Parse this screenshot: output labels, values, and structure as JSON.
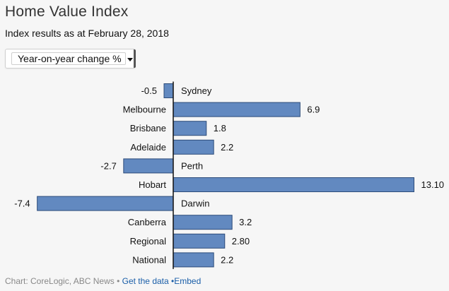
{
  "header": {
    "title": "Home Value Index",
    "subtitle": "Index results as at February 28, 2018"
  },
  "selector": {
    "selected": "Year-on-year change %"
  },
  "chart_data": {
    "type": "bar",
    "orientation": "horizontal",
    "categories": [
      "Sydney",
      "Melbourne",
      "Brisbane",
      "Adelaide",
      "Perth",
      "Hobart",
      "Darwin",
      "Canberra",
      "Regional",
      "National"
    ],
    "values": [
      -0.5,
      6.9,
      1.8,
      2.2,
      -2.7,
      13.1,
      -7.4,
      3.2,
      2.8,
      2.2
    ],
    "value_labels": [
      "-0.5",
      "6.9",
      "1.8",
      "2.2",
      "-2.7",
      "13.10",
      "-7.4",
      "3.2",
      "2.80",
      "2.2"
    ],
    "xlim": [
      -7.4,
      13.1
    ],
    "bar_color": "#6289c0",
    "bar_border_color": "#2d4c7a",
    "grid": false
  },
  "footer": {
    "source": "Chart: CoreLogic, ABC News",
    "separator": "•",
    "link_data": "Get the data",
    "link_embed": "•Embed"
  }
}
